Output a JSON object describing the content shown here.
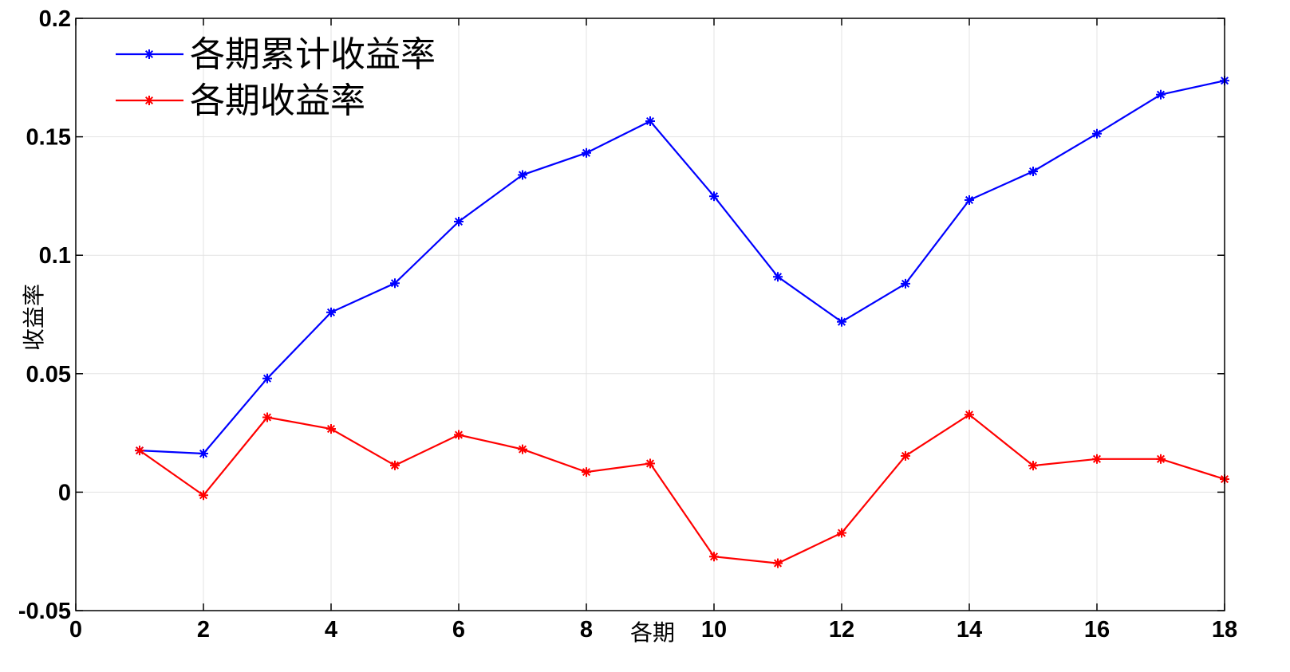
{
  "chart_data": {
    "type": "line",
    "xlabel": "各期",
    "ylabel": "收益率",
    "xlim": [
      0,
      18
    ],
    "ylim": [
      -0.05,
      0.2
    ],
    "xticks": [
      0,
      2,
      4,
      6,
      8,
      10,
      12,
      14,
      16,
      18
    ],
    "xtick_labels": [
      "0",
      "2",
      "4",
      "6",
      "8",
      "10",
      "12",
      "14",
      "16",
      "18"
    ],
    "yticks": [
      -0.05,
      0,
      0.05,
      0.1,
      0.15,
      0.2
    ],
    "ytick_labels": [
      "-0.05",
      "0",
      "0.05",
      "0.1",
      "0.15",
      "0.2"
    ],
    "grid": true,
    "legend_position": "top-left",
    "x": [
      1,
      2,
      3,
      4,
      5,
      6,
      7,
      8,
      9,
      10,
      11,
      12,
      13,
      14,
      15,
      16,
      17,
      18
    ],
    "series": [
      {
        "name": "各期累计收益率",
        "color": "#0000ff",
        "marker": "asterisk",
        "values": [
          0.0176,
          0.0163,
          0.048,
          0.0759,
          0.0882,
          0.1142,
          0.1339,
          0.1432,
          0.1566,
          0.1249,
          0.0909,
          0.0719,
          0.088,
          0.1233,
          0.1354,
          0.1513,
          0.1678,
          0.1737
        ]
      },
      {
        "name": "各期收益率",
        "color": "#ff0000",
        "marker": "asterisk",
        "values": [
          0.0176,
          -0.0013,
          0.0316,
          0.0267,
          0.0113,
          0.0242,
          0.0181,
          0.0085,
          0.0121,
          -0.0272,
          -0.03,
          -0.0172,
          0.0153,
          0.0327,
          0.0112,
          0.014,
          0.014,
          0.0055
        ]
      }
    ]
  }
}
